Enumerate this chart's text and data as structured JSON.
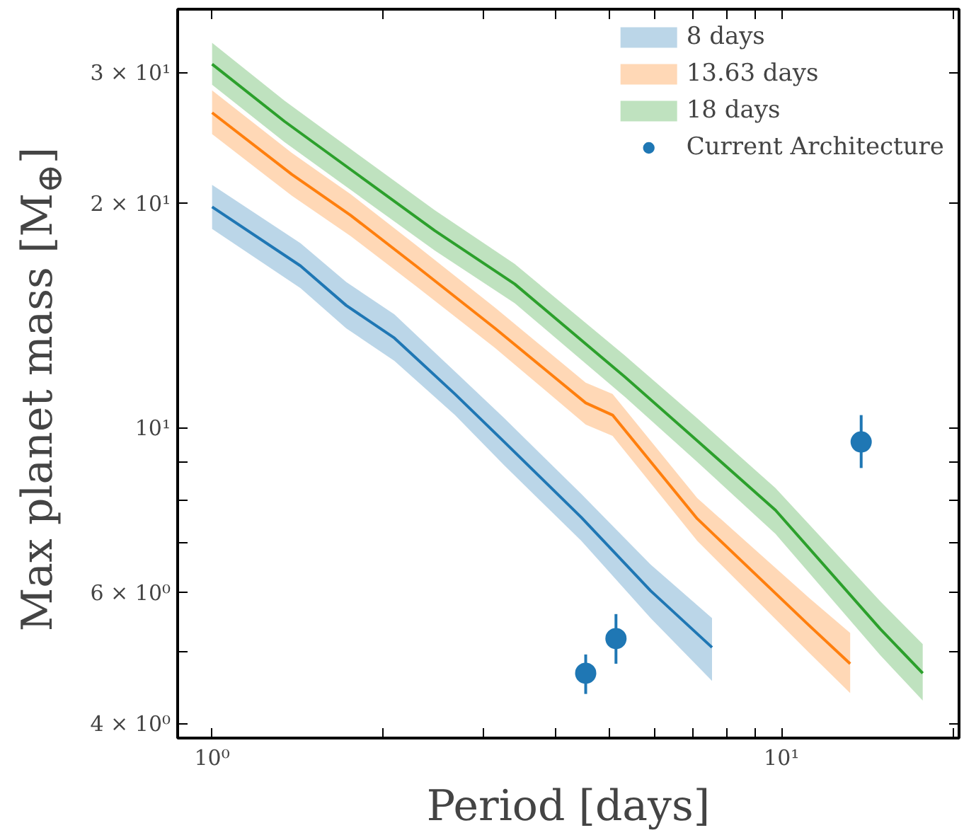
{
  "chart_data": {
    "type": "line",
    "xlabel": "Period [days]",
    "ylabel": "Max planet mass [M$_{⊕}$]",
    "log": "xy",
    "grid": false,
    "legend": "top right",
    "xlim": [
      0.87,
      20.5
    ],
    "ylim": [
      3.83,
      36.5
    ],
    "xticks": [
      {
        "value": 1,
        "label": "10⁰"
      },
      {
        "value": 2,
        "label": null
      },
      {
        "value": 3,
        "label": null
      },
      {
        "value": 4,
        "label": null
      },
      {
        "value": 5,
        "label": null
      },
      {
        "value": 6,
        "label": null
      },
      {
        "value": 7,
        "label": null
      },
      {
        "value": 8,
        "label": null
      },
      {
        "value": 9,
        "label": null
      },
      {
        "value": 10,
        "label": "10¹"
      },
      {
        "value": 20,
        "label": null
      }
    ],
    "yticks": [
      {
        "value": 4,
        "label": "4 × 10⁰"
      },
      {
        "value": 5,
        "label": null
      },
      {
        "value": 6,
        "label": "6 × 10⁰"
      },
      {
        "value": 7,
        "label": null
      },
      {
        "value": 8,
        "label": null
      },
      {
        "value": 9,
        "label": null
      },
      {
        "value": 10,
        "label": "10¹"
      },
      {
        "value": 20,
        "label": "2 × 10¹"
      },
      {
        "value": 30,
        "label": "3 × 10¹"
      }
    ],
    "series": [
      {
        "name": "8 days",
        "color": "#1f77b4",
        "x": [
          1.0,
          1.43,
          1.72,
          2.09,
          2.67,
          3.26,
          4.45,
          5.89,
          7.55
        ],
        "values": [
          19.8,
          16.5,
          14.6,
          13.2,
          11.1,
          9.57,
          7.58,
          6.04,
          5.07
        ],
        "lower": [
          18.5,
          15.4,
          13.6,
          12.3,
          10.4,
          8.9,
          7.05,
          5.55,
          4.57
        ],
        "upper": [
          21.2,
          17.7,
          15.7,
          14.2,
          11.9,
          10.3,
          8.15,
          6.55,
          5.55
        ]
      },
      {
        "name": "13.63 days",
        "color": "#ff7f0e",
        "x": [
          1.0,
          1.38,
          1.75,
          2.28,
          3.14,
          4.53,
          5.05,
          7.11,
          11.2,
          13.2
        ],
        "values": [
          26.5,
          21.9,
          19.3,
          16.5,
          13.6,
          10.8,
          10.4,
          7.55,
          5.42,
          4.82
        ],
        "lower": [
          24.8,
          20.5,
          18.1,
          15.5,
          12.8,
          10.1,
          9.75,
          7.05,
          4.98,
          4.4
        ],
        "upper": [
          28.4,
          23.4,
          20.6,
          17.6,
          14.5,
          11.5,
          11.1,
          8.05,
          5.9,
          5.3
        ]
      },
      {
        "name": "18 days",
        "color": "#2ca02c",
        "x": [
          1.0,
          1.34,
          2.46,
          3.4,
          5.31,
          7.11,
          9.76,
          14.9,
          17.7
        ],
        "values": [
          30.8,
          25.8,
          18.4,
          15.6,
          11.7,
          9.61,
          7.75,
          5.37,
          4.68
        ],
        "lower": [
          28.9,
          24.2,
          17.3,
          14.7,
          11.0,
          9.0,
          7.2,
          4.95,
          4.3
        ],
        "upper": [
          32.9,
          27.5,
          19.6,
          16.6,
          12.5,
          10.3,
          8.3,
          5.85,
          5.12
        ]
      },
      {
        "name": "Current Architecture",
        "type": "scatter",
        "marker": "circle",
        "color": "#1f77b4",
        "x": [
          4.53,
          5.12,
          13.8
        ],
        "values": [
          4.68,
          5.21,
          9.57
        ],
        "errors": [
          [
            4.39,
            4.96
          ],
          [
            4.82,
            5.62
          ],
          [
            8.83,
            10.4
          ]
        ]
      }
    ]
  }
}
